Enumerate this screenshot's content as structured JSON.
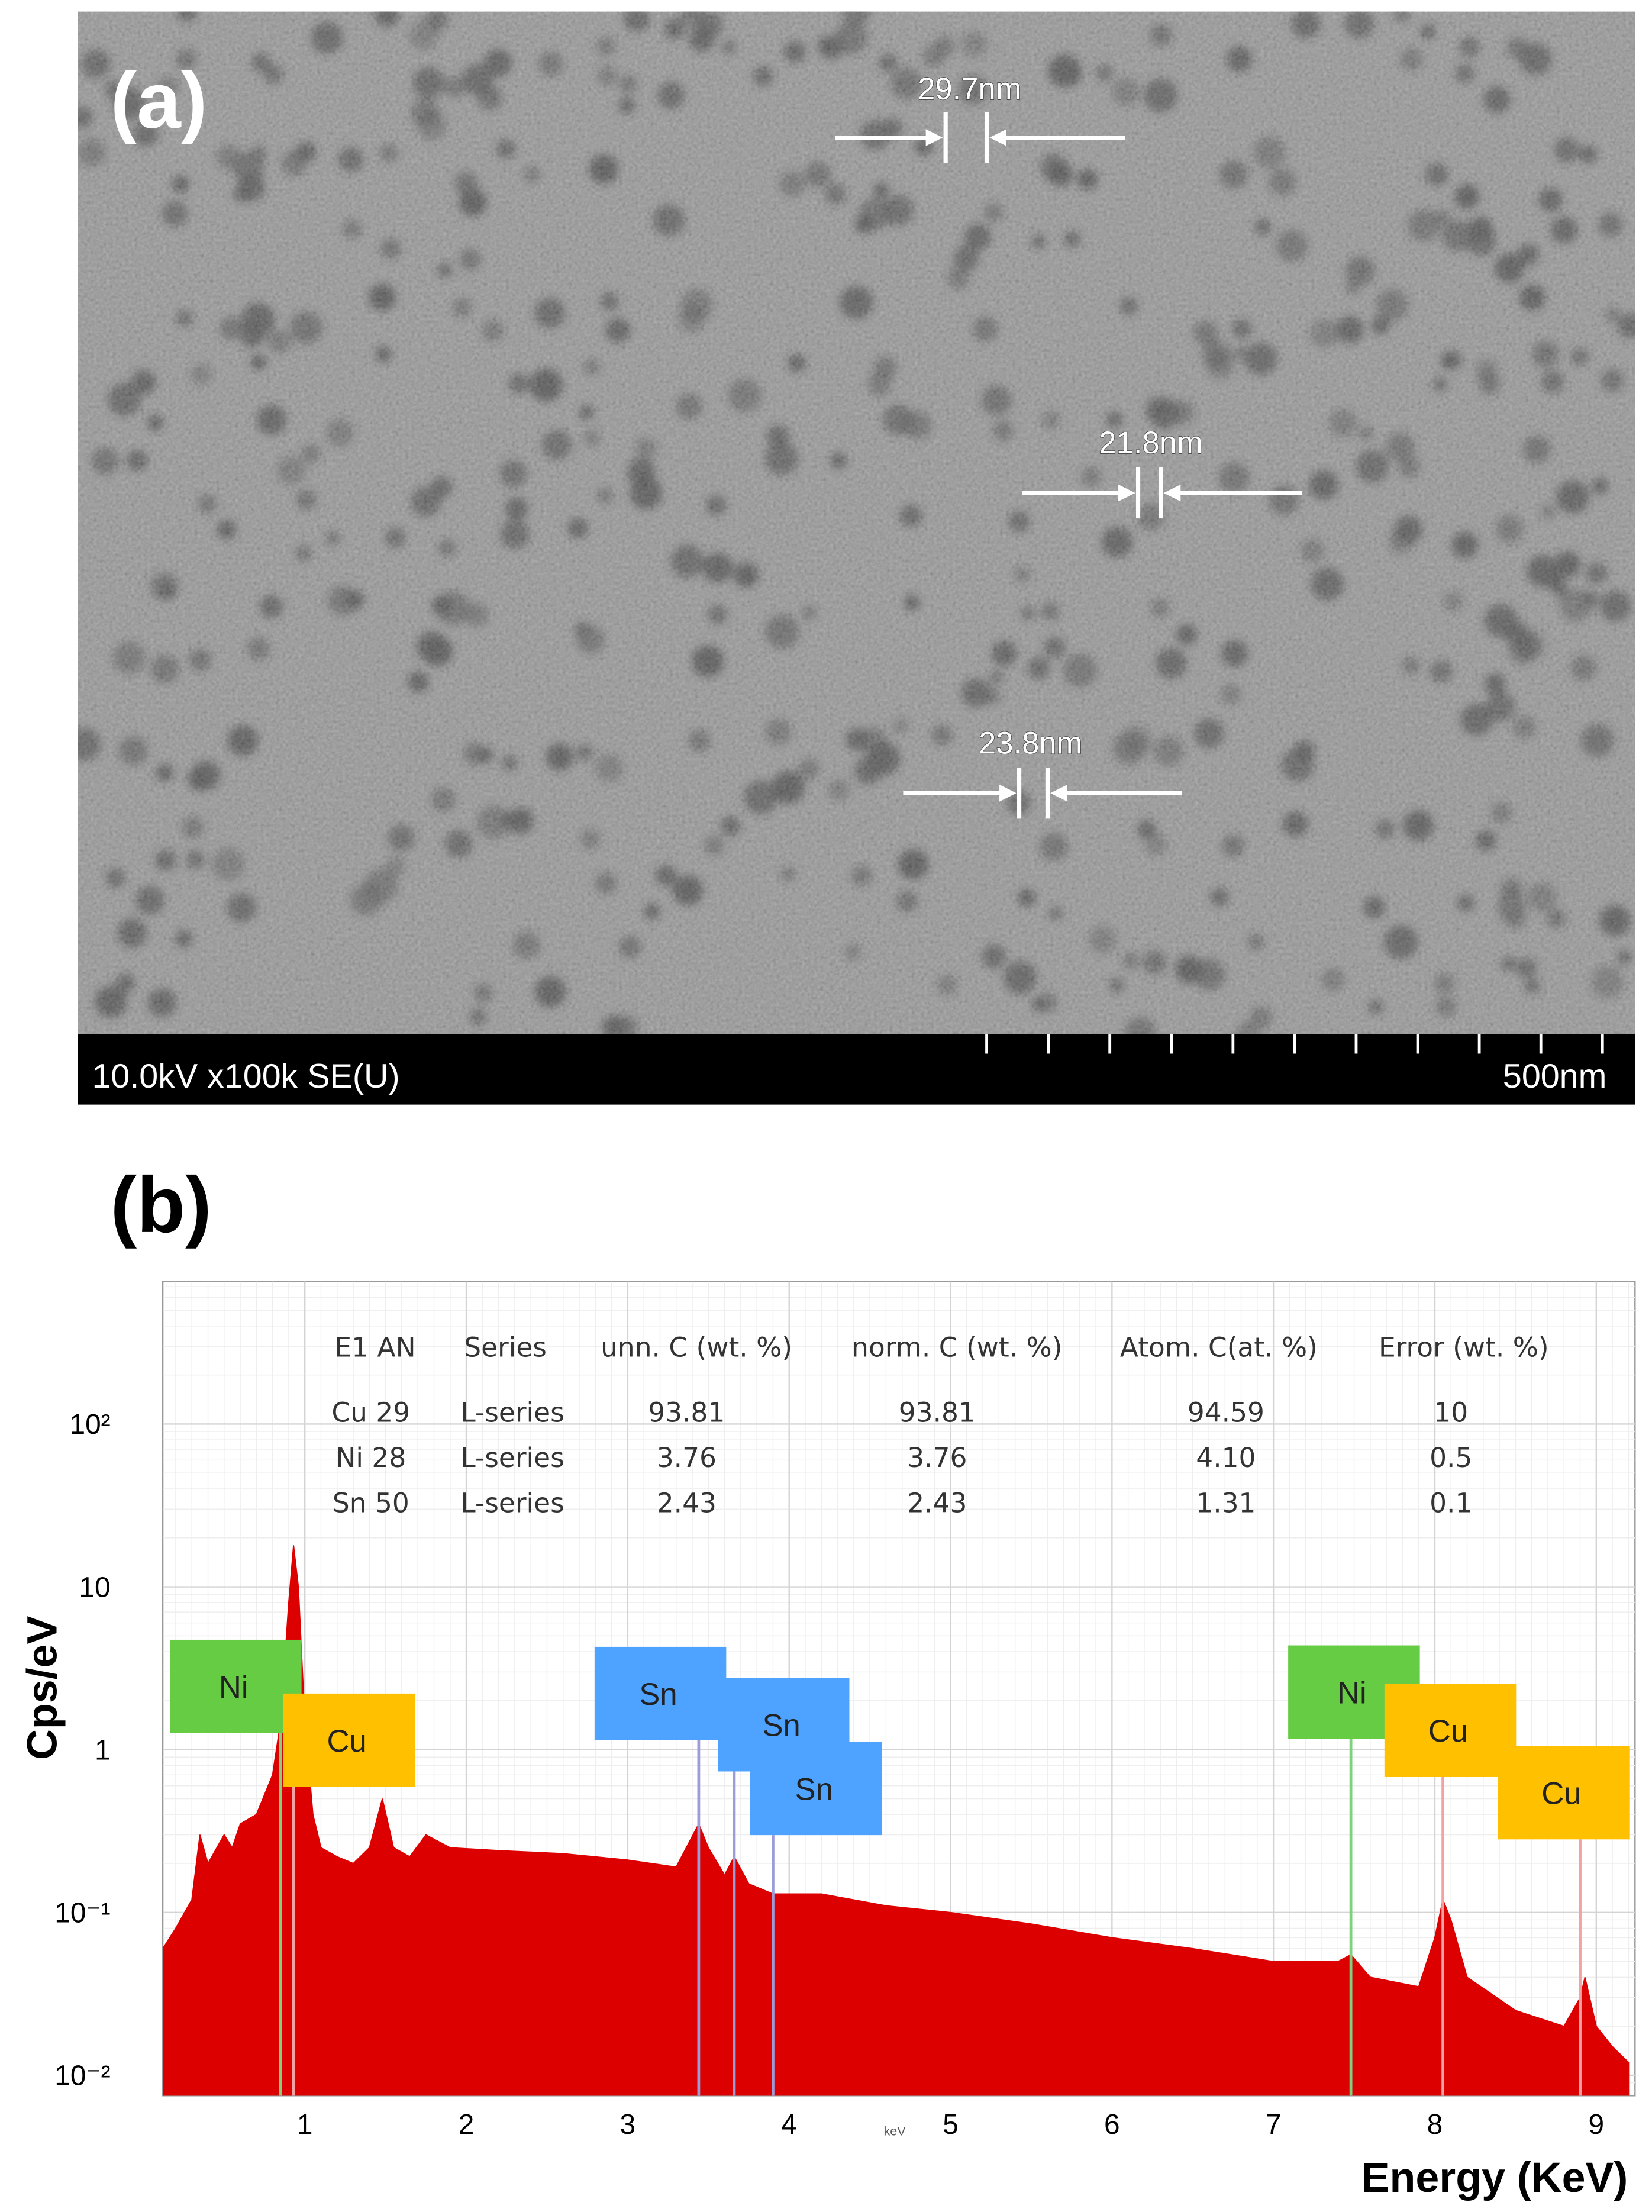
{
  "panel_a": {
    "label": "(a)",
    "measurements": [
      "29.7nm",
      "21.8nm",
      "23.8nm"
    ],
    "info_bar": "10.0kV x100k SE(U)",
    "scale_bar": "500nm"
  },
  "panel_b": {
    "label": "(b)",
    "table": {
      "header": [
        "E1 AN",
        "Series",
        "unn. C (wt. %)",
        "norm. C (wt. %)",
        "Atom. C(at. %)",
        "Error (wt. %)"
      ],
      "rows": [
        [
          "Cu 29",
          "L-series",
          "93.81",
          "93.81",
          "94.59",
          "10"
        ],
        [
          "Ni 28",
          "L-series",
          "3.76",
          "3.76",
          "4.10",
          "0.5"
        ],
        [
          "Sn 50",
          "L-series",
          "2.43",
          "2.43",
          "1.31",
          "0.1"
        ]
      ]
    }
  },
  "chart_data": {
    "type": "area",
    "x_label": "Energy (KeV)",
    "y_label": "Cps/eV",
    "axis_note": "keV",
    "log_y": true,
    "grid": true,
    "color": "#dd0000",
    "xlim": [
      0.12,
      9.24
    ],
    "ylim": [
      0.0075,
      750
    ],
    "xticks": [
      1,
      2,
      3,
      4,
      5,
      6,
      7,
      8,
      9
    ],
    "yticks": [
      {
        "value": 0.01,
        "label": "10⁻²"
      },
      {
        "value": 0.1,
        "label": "10⁻¹"
      },
      1,
      10,
      {
        "value": 100,
        "label": "10²"
      }
    ],
    "x": [
      0.12,
      0.2,
      0.3,
      0.35,
      0.4,
      0.5,
      0.55,
      0.6,
      0.7,
      0.8,
      0.85,
      0.9,
      0.93,
      0.96,
      1.0,
      1.05,
      1.1,
      1.2,
      1.3,
      1.4,
      1.48,
      1.55,
      1.65,
      1.75,
      1.9,
      2.2,
      2.6,
      3.0,
      3.3,
      3.44,
      3.5,
      3.6,
      3.66,
      3.75,
      3.9,
      4.2,
      4.6,
      5.0,
      5.5,
      6.0,
      6.5,
      7.0,
      7.4,
      7.48,
      7.6,
      7.9,
      8.0,
      8.05,
      8.1,
      8.2,
      8.5,
      8.8,
      8.9,
      8.93,
      9.0,
      9.1,
      9.2
    ],
    "values": [
      0.06,
      0.08,
      0.12,
      0.3,
      0.2,
      0.3,
      0.25,
      0.35,
      0.4,
      0.7,
      1.5,
      8,
      18,
      10,
      1.5,
      0.4,
      0.25,
      0.22,
      0.2,
      0.25,
      0.5,
      0.25,
      0.22,
      0.3,
      0.25,
      0.24,
      0.23,
      0.21,
      0.19,
      0.35,
      0.25,
      0.17,
      0.22,
      0.15,
      0.13,
      0.13,
      0.11,
      0.1,
      0.085,
      0.07,
      0.06,
      0.05,
      0.05,
      0.055,
      0.04,
      0.035,
      0.07,
      0.12,
      0.09,
      0.04,
      0.025,
      0.02,
      0.03,
      0.04,
      0.02,
      0.015,
      0.012
    ],
    "peaks": [
      {
        "label": "Ni",
        "x": 0.85,
        "color": "#66cc44"
      },
      {
        "label": "Cu",
        "x": 0.93,
        "color": "#ffc000"
      },
      {
        "label": "Sn",
        "x": 3.44,
        "color": "#4da3ff"
      },
      {
        "label": "Sn",
        "x": 3.66,
        "color": "#4da3ff"
      },
      {
        "label": "Sn",
        "x": 3.9,
        "color": "#4da3ff"
      },
      {
        "label": "Ni",
        "x": 7.48,
        "color": "#66cc44"
      },
      {
        "label": "Cu",
        "x": 8.05,
        "color": "#ffc000"
      },
      {
        "label": "Cu",
        "x": 8.9,
        "color": "#ffc000"
      }
    ]
  }
}
